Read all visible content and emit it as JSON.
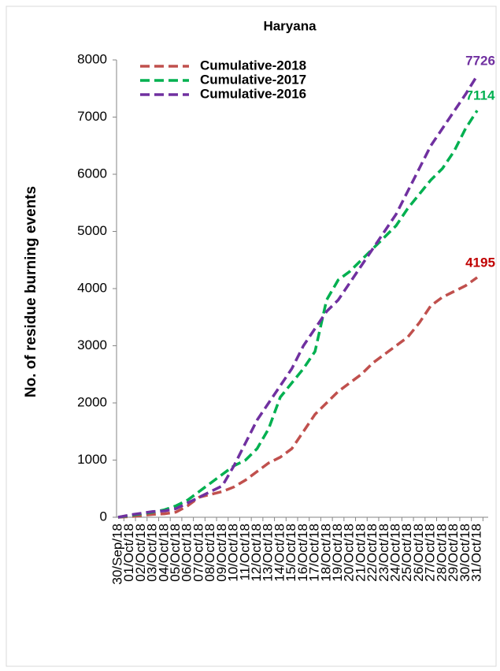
{
  "chart_data": {
    "type": "line",
    "title": "Haryana",
    "y_label": "No. of residue burning events",
    "categories": [
      "30/Sep/18",
      "01/Oct/18",
      "02/Oct/18",
      "03/Oct/18",
      "04/Oct/18",
      "05/Oct/18",
      "06/Oct/18",
      "07/Oct/18",
      "08/Oct/18",
      "09/Oct/18",
      "10/Oct/18",
      "11/Oct/18",
      "12/Oct/18",
      "13/Oct/18",
      "14/Oct/18",
      "15/Oct/18",
      "16/Oct/18",
      "17/Oct/18",
      "18/Oct/18",
      "19/Oct/18",
      "20/Oct/18",
      "21/Oct/18",
      "22/Oct/18",
      "23/Oct/18",
      "24/Oct/18",
      "25/Oct/18",
      "26/Oct/18",
      "27/Oct/18",
      "28/Oct/18",
      "29/Oct/18",
      "30/Oct/18",
      "31/Oct/18"
    ],
    "series": [
      {
        "name": "Cumulative-2018",
        "color": "#c0504d",
        "label_color": "#c00000",
        "values": [
          0,
          10,
          30,
          50,
          60,
          90,
          200,
          350,
          400,
          450,
          530,
          650,
          800,
          950,
          1050,
          1200,
          1500,
          1800,
          2000,
          2200,
          2350,
          2500,
          2700,
          2850,
          3000,
          3150,
          3400,
          3700,
          3850,
          3950,
          4050,
          4195
        ]
      },
      {
        "name": "Cumulative-2017",
        "color": "#00b050",
        "label_color": "#00b050",
        "values": [
          0,
          30,
          60,
          90,
          130,
          200,
          300,
          450,
          600,
          750,
          900,
          1000,
          1200,
          1550,
          2100,
          2350,
          2600,
          2900,
          3800,
          4150,
          4300,
          4500,
          4700,
          4900,
          5100,
          5400,
          5650,
          5900,
          6100,
          6400,
          6800,
          7114
        ]
      },
      {
        "name": "Cumulative-2016",
        "color": "#7030a0",
        "label_color": "#7030a0",
        "values": [
          0,
          40,
          70,
          100,
          110,
          150,
          250,
          350,
          450,
          550,
          900,
          1300,
          1700,
          2000,
          2300,
          2600,
          3000,
          3300,
          3600,
          3800,
          4100,
          4400,
          4700,
          5000,
          5300,
          5700,
          6100,
          6500,
          6800,
          7100,
          7400,
          7726
        ]
      }
    ],
    "ylim": [
      0,
      8000
    ],
    "yticks": [
      0,
      1000,
      2000,
      3000,
      4000,
      5000,
      6000,
      7000,
      8000
    ],
    "dashed": true
  }
}
